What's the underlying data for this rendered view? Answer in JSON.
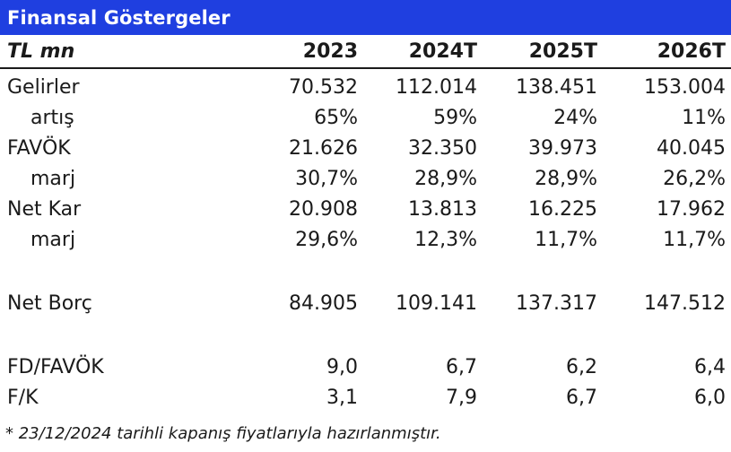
{
  "title": "Finansal Göstergeler",
  "header": {
    "unit": "TL mn",
    "years": [
      "2023",
      "2024T",
      "2025T",
      "2026T"
    ]
  },
  "rows": [
    {
      "label": "Gelirler",
      "values": [
        "70.532",
        "112.014",
        "138.451",
        "153.004"
      ]
    },
    {
      "label": "artış",
      "values": [
        "65%",
        "59%",
        "24%",
        "11%"
      ]
    },
    {
      "label": "FAVÖK",
      "values": [
        "21.626",
        "32.350",
        "39.973",
        "40.045"
      ]
    },
    {
      "label": "marj",
      "values": [
        "30,7%",
        "28,9%",
        "28,9%",
        "26,2%"
      ]
    },
    {
      "label": "Net Kar",
      "values": [
        "20.908",
        "13.813",
        "16.225",
        "17.962"
      ]
    },
    {
      "label": "marj",
      "values": [
        "29,6%",
        "12,3%",
        "11,7%",
        "11,7%"
      ]
    },
    {
      "label": "Net Borç",
      "values": [
        "84.905",
        "109.141",
        "137.317",
        "147.512"
      ]
    },
    {
      "label": "FD/FAVÖK",
      "values": [
        "9,0",
        "6,7",
        "6,2",
        "6,4"
      ]
    },
    {
      "label": "F/K",
      "values": [
        "3,1",
        "7,9",
        "6,7",
        "6,0"
      ]
    }
  ],
  "footnote": "* 23/12/2024 tarihli kapanış fiyatlarıyla hazırlanmıştır."
}
